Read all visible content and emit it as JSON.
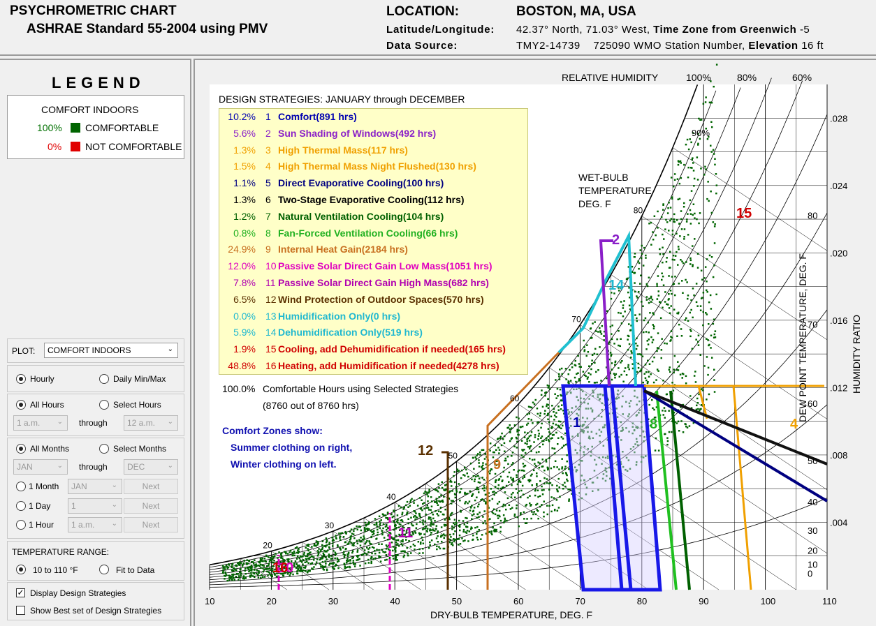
{
  "header": {
    "title": "PSYCHROMETRIC CHART",
    "subtitle": "ASHRAE Standard 55-2004 using PMV",
    "location_label": "LOCATION:",
    "location_value": "BOSTON, MA, USA",
    "latlon_label": "Latitude/Longitude:",
    "latlon_value": "42.37° North, 71.03° West,",
    "tz_label": "Time Zone from Greenwich",
    "tz_value": "-5",
    "source_label": "Data Source:",
    "source_value": "TMY2-14739",
    "station_value": "725090 WMO Station Number,",
    "elev_label": "Elevation",
    "elev_value": "16 ft"
  },
  "legend": {
    "title": "LEGEND",
    "heading": "COMFORT INDOORS",
    "rows": [
      {
        "pct": "100%",
        "label": "COMFORTABLE",
        "pct_color": "#007000",
        "swatch": "#006400"
      },
      {
        "pct": "0%",
        "label": "NOT COMFORTABLE",
        "pct_color": "#e00000",
        "swatch": "#e00000"
      }
    ]
  },
  "controls": {
    "plot_label": "PLOT:",
    "plot_value": "COMFORT INDOORS",
    "hourly": "Hourly",
    "daily": "Daily Min/Max",
    "all_hours": "All Hours",
    "select_hours": "Select Hours",
    "hour_from": "1 a.m.",
    "through": "through",
    "hour_to": "12 a.m.",
    "all_months": "All Months",
    "select_months": "Select Months",
    "month_from": "JAN",
    "month_to": "DEC",
    "one_month": "1 Month",
    "one_month_val": "JAN",
    "one_day": "1 Day",
    "one_day_val": "1",
    "one_hour": "1 Hour",
    "one_hour_val": "1 a.m.",
    "next": "Next",
    "temp_range_label": "TEMPERATURE RANGE:",
    "range_1": "10 to 110 °F",
    "range_2": "Fit to Data",
    "display_strategies": "Display Design Strategies",
    "show_best": "Show Best set of Design Strategies"
  },
  "strategies": {
    "heading": "DESIGN STRATEGIES:  JANUARY through DECEMBER",
    "items": [
      {
        "pct": "10.2%",
        "num": "1",
        "label": "Comfort(891 hrs)",
        "color": "#0000b0"
      },
      {
        "pct": "5.6%",
        "num": "2",
        "label": "Sun Shading of Windows(492 hrs)",
        "color": "#8a1fc8"
      },
      {
        "pct": "1.3%",
        "num": "3",
        "label": "High Thermal Mass(117 hrs)",
        "color": "#f0a000"
      },
      {
        "pct": "1.5%",
        "num": "4",
        "label": "High Thermal Mass Night Flushed(130 hrs)",
        "color": "#f0a000"
      },
      {
        "pct": "1.1%",
        "num": "5",
        "label": "Direct Evaporative Cooling(100 hrs)",
        "color": "#000080"
      },
      {
        "pct": "1.3%",
        "num": "6",
        "label": "Two-Stage Evaporative Cooling(112 hrs)",
        "color": "#000000"
      },
      {
        "pct": "1.2%",
        "num": "7",
        "label": "Natural Ventilation Cooling(104 hrs)",
        "color": "#006000"
      },
      {
        "pct": "0.8%",
        "num": "8",
        "label": "Fan-Forced Ventilation Cooling(66 hrs)",
        "color": "#20b020"
      },
      {
        "pct": "24.9%",
        "num": "9",
        "label": "Internal Heat Gain(2184 hrs)",
        "color": "#c87020"
      },
      {
        "pct": "12.0%",
        "num": "10",
        "label": "Passive Solar Direct Gain Low Mass(1051 hrs)",
        "color": "#e000c0"
      },
      {
        "pct": "7.8%",
        "num": "11",
        "label": "Passive Solar Direct Gain High Mass(682 hrs)",
        "color": "#b000b0"
      },
      {
        "pct": "6.5%",
        "num": "12",
        "label": "Wind Protection of Outdoor Spaces(570 hrs)",
        "color": "#5a3000"
      },
      {
        "pct": "0.0%",
        "num": "13",
        "label": "Humidification Only(0 hrs)",
        "color": "#20b8d0"
      },
      {
        "pct": "5.9%",
        "num": "14",
        "label": "Dehumidification Only(519 hrs)",
        "color": "#20b8d0"
      },
      {
        "pct": "1.9%",
        "num": "15",
        "label": "Cooling, add Dehumidification if needed(165 hrs)",
        "color": "#d00000"
      },
      {
        "pct": "48.8%",
        "num": "16",
        "label": "Heating, add Humidification if needed(4278 hrs)",
        "color": "#d00000"
      }
    ],
    "total_pct": "100.0%",
    "total_label": "Comfortable Hours using Selected Strategies",
    "total_sub": "(8760 out of 8760 hrs)",
    "zones_1": "Comfort Zones show:",
    "zones_2": "Summer clothing on right,",
    "zones_3": "Winter clothing on left."
  },
  "chart_data": {
    "type": "scatter",
    "title": "",
    "xlabel": "DRY-BULB TEMPERATURE, DEG. F",
    "ylabel": "HUMIDITY RATIO",
    "y2label": "DEW POINT TEMPERATURE, DEG. F",
    "toplabel": "RELATIVE HUMIDITY",
    "wb_label": [
      "WET-BULB",
      "TEMPERATURE",
      "DEG. F"
    ],
    "xlim": [
      10,
      110
    ],
    "ylim": [
      0,
      0.03
    ],
    "x_ticks": [
      "10",
      "20",
      "30",
      "40",
      "50",
      "60",
      "70",
      "80",
      "90",
      "100",
      "110"
    ],
    "y_ticks": [
      ".004",
      ".008",
      ".012",
      ".016",
      ".020",
      ".024",
      ".028"
    ],
    "rh_labels": [
      "100%",
      "80%",
      "60%",
      "90%"
    ],
    "dp_ticks": [
      "0",
      "10",
      "20",
      "30",
      "40",
      "50",
      "60",
      "70",
      "80"
    ],
    "wb_ticks": [
      "20",
      "30",
      "40",
      "50",
      "60",
      "70",
      "80"
    ],
    "strategy_labels": [
      "1",
      "2",
      "4",
      "8",
      "9",
      "10",
      "11",
      "12",
      "14",
      "15",
      "16"
    ],
    "points_color": "#006400"
  }
}
